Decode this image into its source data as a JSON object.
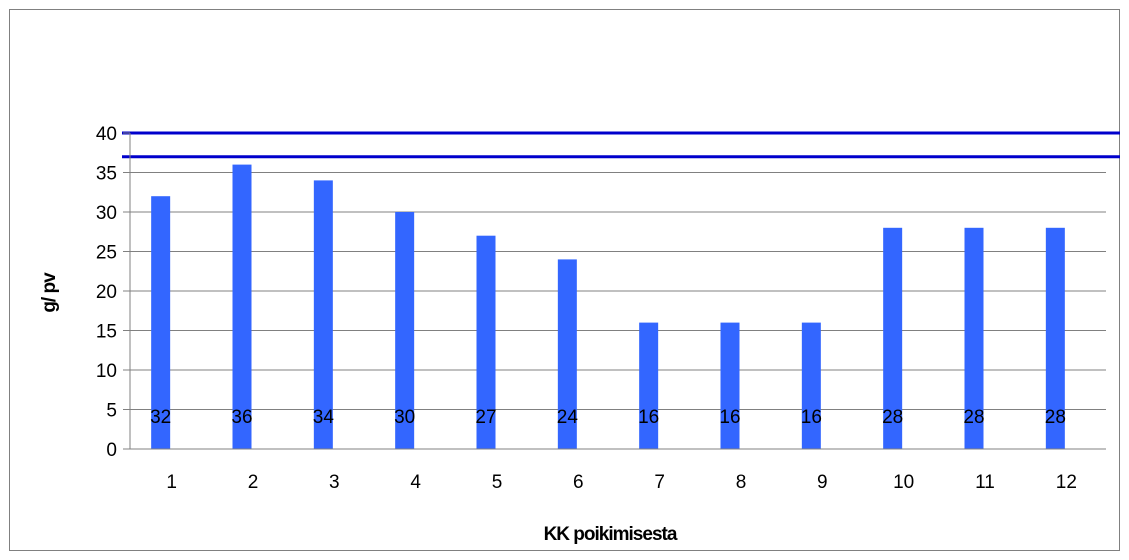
{
  "chart_data": {
    "type": "bar",
    "categories": [
      "1",
      "2",
      "3",
      "4",
      "5",
      "6",
      "7",
      "8",
      "9",
      "10",
      "11",
      "12"
    ],
    "values": [
      32,
      36,
      34,
      30,
      27,
      24,
      16,
      16,
      16,
      28,
      28,
      28
    ],
    "data_labels": [
      "32",
      "36",
      "34",
      "30",
      "27",
      "24",
      "16",
      "16",
      "16",
      "28",
      "28",
      "28"
    ],
    "xlabel": "KK poikimisesta",
    "ylabel": "g/ pv",
    "ylim": [
      0,
      40
    ],
    "yticks": [
      "0",
      "5",
      "10",
      "15",
      "20",
      "25",
      "30",
      "35",
      "40"
    ],
    "reference_lines": [
      40,
      37
    ],
    "bar_color": "#3366ff",
    "reference_line_color": "#0000cc",
    "gridline_color": "#808080",
    "grid": true,
    "legend": "none"
  }
}
